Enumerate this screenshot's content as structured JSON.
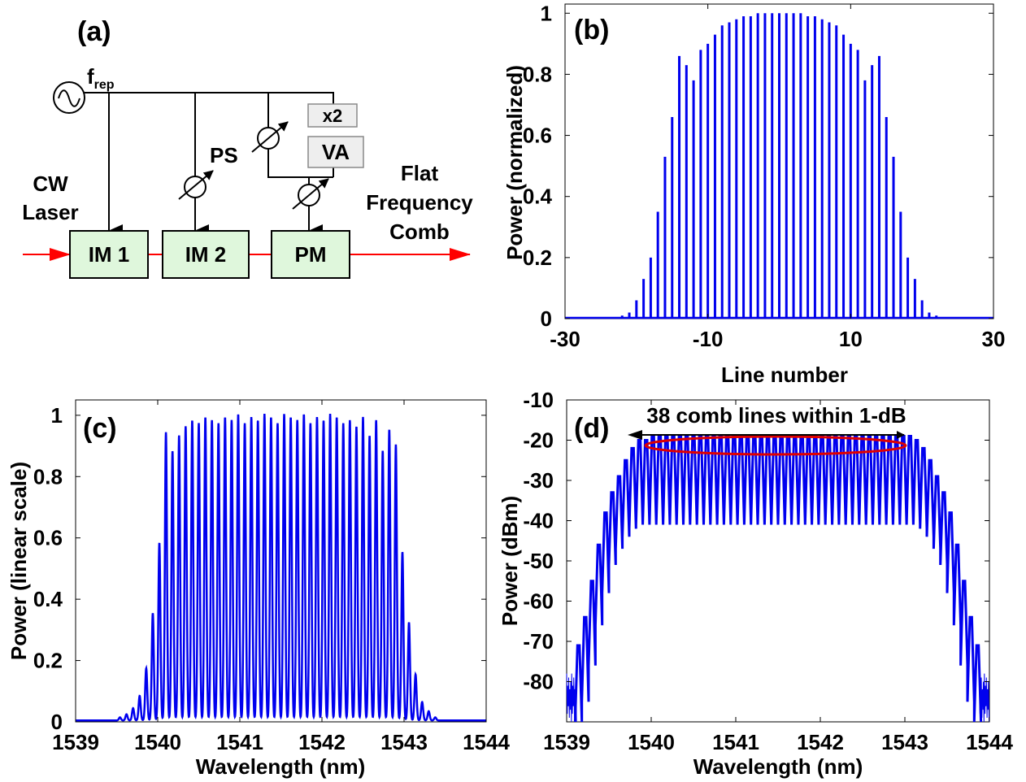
{
  "panel_a": {
    "label": "(a)",
    "f_main": "f",
    "f_sub": "rep",
    "ps": "PS",
    "x2": "x2",
    "va": "VA",
    "cw_line1": "CW",
    "cw_line2": "Laser",
    "im1": "IM 1",
    "im2": "IM 2",
    "pm": "PM",
    "out_line1": "Flat",
    "out_line2": "Frequency",
    "out_line3": "Comb"
  },
  "colors": {
    "trace": "#0000ee",
    "arrow": "#ff0000",
    "box_fill": "#dff7dc",
    "small_box_fill": "#eeeeee",
    "ellipse": "#e00000"
  },
  "chart_data": [
    {
      "panel": "(b)",
      "type": "bar",
      "xlabel": "Line number",
      "ylabel": "Power (normalized)",
      "xlim": [
        -30,
        30
      ],
      "ylim": [
        0,
        1.03
      ],
      "xticks": [
        "-30",
        "-10",
        "10",
        "30"
      ],
      "yticks": [
        "0",
        "0.2",
        "0.4",
        "0.6",
        "0.8",
        "1"
      ],
      "x": [
        -22,
        -21,
        -20,
        -19,
        -18,
        -17,
        -16,
        -15,
        -14,
        -13,
        -12,
        -11,
        -10,
        -9,
        -8,
        -7,
        -6,
        -5,
        -4,
        -3,
        -2,
        -1,
        0,
        1,
        2,
        3,
        4,
        5,
        6,
        7,
        8,
        9,
        10,
        11,
        12,
        13,
        14,
        15,
        16,
        17,
        18,
        19,
        20,
        21,
        22
      ],
      "values": [
        0.01,
        0.02,
        0.06,
        0.13,
        0.2,
        0.35,
        0.53,
        0.66,
        0.86,
        0.83,
        0.78,
        0.88,
        0.9,
        0.93,
        0.96,
        0.97,
        0.98,
        0.99,
        0.99,
        1.0,
        1.0,
        1.0,
        1.0,
        1.0,
        1.0,
        1.0,
        0.99,
        0.99,
        0.98,
        0.97,
        0.96,
        0.93,
        0.9,
        0.88,
        0.78,
        0.83,
        0.86,
        0.66,
        0.53,
        0.35,
        0.2,
        0.13,
        0.06,
        0.02,
        0.01
      ]
    },
    {
      "panel": "(c)",
      "type": "line",
      "xlabel": "Wavelength (nm)",
      "ylabel": "Power (linear scale)",
      "xlim": [
        1539,
        1544
      ],
      "ylim": [
        0,
        1.05
      ],
      "xticks": [
        "1539",
        "1540",
        "1541",
        "1542",
        "1543",
        "1544"
      ],
      "yticks": [
        "0",
        "0.2",
        "0.4",
        "0.6",
        "0.8",
        "1"
      ],
      "line_spacing_nm": 0.08,
      "x": [
        1539.54,
        1539.62,
        1539.7,
        1539.78,
        1539.86,
        1539.94,
        1540.02,
        1540.1,
        1540.18,
        1540.26,
        1540.34,
        1540.42,
        1540.5,
        1540.58,
        1540.66,
        1540.74,
        1540.82,
        1540.9,
        1540.98,
        1541.06,
        1541.14,
        1541.22,
        1541.3,
        1541.38,
        1541.46,
        1541.54,
        1541.62,
        1541.7,
        1541.78,
        1541.86,
        1541.94,
        1542.02,
        1542.1,
        1542.18,
        1542.26,
        1542.34,
        1542.42,
        1542.5,
        1542.58,
        1542.66,
        1542.74,
        1542.82,
        1542.9,
        1542.98,
        1543.06,
        1543.14,
        1543.22,
        1543.3,
        1543.38
      ],
      "values": [
        0.01,
        0.02,
        0.04,
        0.08,
        0.17,
        0.35,
        0.58,
        0.94,
        0.88,
        0.93,
        0.96,
        0.98,
        0.97,
        0.99,
        0.98,
        0.97,
        0.99,
        0.98,
        1.0,
        0.97,
        0.99,
        0.98,
        1.0,
        0.99,
        0.97,
        1.0,
        0.99,
        0.98,
        1.0,
        0.97,
        0.99,
        0.98,
        1.0,
        0.99,
        0.97,
        0.98,
        0.96,
        0.99,
        0.93,
        0.98,
        0.88,
        0.95,
        0.9,
        0.55,
        0.32,
        0.15,
        0.06,
        0.03,
        0.01
      ]
    },
    {
      "panel": "(d)",
      "type": "line",
      "xlabel": "Wavelength (nm)",
      "ylabel": "Power (dBm)",
      "xlim": [
        1539,
        1544
      ],
      "ylim": [
        -90,
        -10
      ],
      "xticks": [
        "1539",
        "1540",
        "1541",
        "1542",
        "1543",
        "1544"
      ],
      "yticks": [
        "-10",
        "-20",
        "-30",
        "-40",
        "-50",
        "-60",
        "-70",
        "-80"
      ],
      "x": [
        1539.14,
        1539.22,
        1539.3,
        1539.38,
        1539.46,
        1539.54,
        1539.62,
        1539.7,
        1539.78,
        1539.86,
        1539.94,
        1540.02,
        1540.1,
        1540.18,
        1540.26,
        1540.34,
        1540.42,
        1540.5,
        1540.58,
        1540.66,
        1540.74,
        1540.82,
        1540.9,
        1540.98,
        1541.06,
        1541.14,
        1541.22,
        1541.3,
        1541.38,
        1541.46,
        1541.54,
        1541.62,
        1541.7,
        1541.78,
        1541.86,
        1541.94,
        1542.02,
        1542.1,
        1542.18,
        1542.26,
        1542.34,
        1542.42,
        1542.5,
        1542.58,
        1542.66,
        1542.74,
        1542.82,
        1542.9,
        1542.98,
        1543.06,
        1543.14,
        1543.22,
        1543.3,
        1543.38,
        1543.46,
        1543.54,
        1543.62,
        1543.7,
        1543.78,
        1543.86
      ],
      "peaks": [
        -71,
        -64,
        -55,
        -46,
        -38,
        -33,
        -29,
        -25,
        -22,
        -20,
        -20,
        -19,
        -19,
        -19,
        -19,
        -19,
        -19,
        -19,
        -19,
        -19,
        -19,
        -19,
        -19,
        -19,
        -19,
        -19,
        -19,
        -19,
        -19,
        -19,
        -19,
        -19,
        -19,
        -19,
        -19,
        -19,
        -19,
        -19,
        -19,
        -19,
        -19,
        -19,
        -19,
        -19,
        -19,
        -19,
        -19,
        -19,
        -19,
        -19,
        -20,
        -22,
        -25,
        -29,
        -33,
        -38,
        -46,
        -55,
        -64,
        -71
      ],
      "floor": [
        -90,
        -85,
        -76,
        -66,
        -58,
        -51,
        -47,
        -44,
        -42,
        -41,
        -41,
        -41,
        -41,
        -41,
        -41,
        -41,
        -41,
        -41,
        -41,
        -41,
        -41,
        -41,
        -41,
        -41,
        -41,
        -41,
        -41,
        -41,
        -41,
        -41,
        -41,
        -41,
        -41,
        -41,
        -41,
        -41,
        -41,
        -41,
        -41,
        -41,
        -41,
        -41,
        -41,
        -41,
        -41,
        -41,
        -41,
        -41,
        -41,
        -41,
        -41,
        -42,
        -44,
        -47,
        -51,
        -58,
        -66,
        -76,
        -85,
        -90
      ],
      "annotation": "38 comb lines within 1-dB",
      "annotation_span": [
        1540.0,
        1543.05
      ]
    }
  ]
}
